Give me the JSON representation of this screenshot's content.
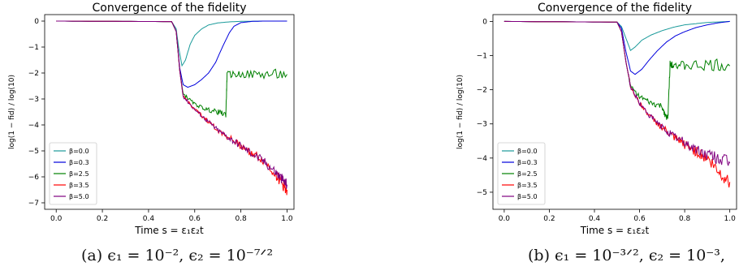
{
  "chart_data": [
    {
      "type": "line",
      "title": "Convergence of the fidelity",
      "xlabel": "Time s = ε₁ε₂t",
      "ylabel": "log(1 − fid) / log(10)",
      "xlim": [
        -0.05,
        1.03
      ],
      "ylim": [
        -7.25,
        0.25
      ],
      "xticks": [
        "0.0",
        "0.2",
        "0.4",
        "0.6",
        "0.8",
        "1.0"
      ],
      "yticks": [
        "0",
        "−1",
        "−2",
        "−3",
        "−4",
        "−5",
        "−6",
        "−7"
      ],
      "yticks_values": [
        0,
        -1,
        -2,
        -3,
        -4,
        -5,
        -6,
        -7
      ],
      "grid": false,
      "legend_position": "lower-left",
      "series": [
        {
          "name": "β=0.0",
          "color": "#1a9a9a",
          "x": [
            0.0,
            0.5,
            0.52,
            0.53,
            0.545,
            0.56,
            0.58,
            0.6,
            0.63,
            0.66,
            0.7,
            0.75,
            0.8,
            0.9,
            1.0
          ],
          "y": [
            0,
            -0.02,
            -0.3,
            -1.0,
            -1.72,
            -1.5,
            -0.9,
            -0.55,
            -0.3,
            -0.15,
            -0.07,
            -0.03,
            -0.01,
            0,
            0
          ]
        },
        {
          "name": "β=0.3",
          "color": "#0000dd",
          "x": [
            0.0,
            0.5,
            0.52,
            0.535,
            0.55,
            0.57,
            0.6,
            0.63,
            0.66,
            0.69,
            0.72,
            0.75,
            0.77,
            0.8,
            0.85,
            0.9,
            1.0
          ],
          "y": [
            0,
            -0.02,
            -0.4,
            -1.8,
            -2.45,
            -2.55,
            -2.45,
            -2.25,
            -2.0,
            -1.6,
            -1.0,
            -0.45,
            -0.2,
            -0.06,
            -0.01,
            0,
            0
          ]
        },
        {
          "name": "β=2.5",
          "color": "#008000",
          "x": [
            0.0,
            0.5,
            0.52,
            0.535,
            0.55,
            0.6,
            0.65,
            0.7,
            0.735,
            0.74,
            0.8,
            0.9,
            1.0
          ],
          "y": [
            0,
            -0.02,
            -0.4,
            -1.9,
            -2.8,
            -3.2,
            -3.4,
            -3.5,
            -3.6,
            -2.05,
            -2.05,
            -2.05,
            -2.05
          ]
        },
        {
          "name": "β=3.5",
          "color": "#ff0000",
          "x": [
            0.0,
            0.5,
            0.52,
            0.535,
            0.55,
            0.6,
            0.65,
            0.7,
            0.75,
            0.8,
            0.85,
            0.9,
            0.95,
            0.98,
            1.0
          ],
          "y": [
            0,
            -0.02,
            -0.4,
            -1.9,
            -2.9,
            -3.4,
            -3.8,
            -4.2,
            -4.5,
            -4.8,
            -5.1,
            -5.4,
            -5.9,
            -6.3,
            -6.5
          ]
        },
        {
          "name": "β=5.0",
          "color": "#800080",
          "x": [
            0.0,
            0.5,
            0.52,
            0.535,
            0.55,
            0.6,
            0.65,
            0.7,
            0.75,
            0.8,
            0.85,
            0.9,
            0.95,
            0.98,
            1.0
          ],
          "y": [
            0,
            -0.02,
            -0.4,
            -1.9,
            -2.9,
            -3.4,
            -3.8,
            -4.2,
            -4.5,
            -4.8,
            -5.1,
            -5.4,
            -5.8,
            -6.1,
            -6.3
          ]
        }
      ]
    },
    {
      "type": "line",
      "title": "Convergence of the fidelity",
      "xlabel": "Time s = ε₁ε₂t",
      "ylabel": "log(1 − fid) / log(10)",
      "xlim": [
        -0.05,
        1.03
      ],
      "ylim": [
        -5.5,
        0.2
      ],
      "xticks": [
        "0.0",
        "0.2",
        "0.4",
        "0.6",
        "0.8",
        "1.0"
      ],
      "yticks": [
        "0",
        "−1",
        "−2",
        "−3",
        "−4",
        "−5"
      ],
      "yticks_values": [
        0,
        -1,
        -2,
        -3,
        -4,
        -5
      ],
      "grid": false,
      "legend_position": "lower-left",
      "series": [
        {
          "name": "β=0.0",
          "color": "#1a9a9a",
          "x": [
            0.0,
            0.5,
            0.52,
            0.54,
            0.56,
            0.58,
            0.61,
            0.65,
            0.7,
            0.75,
            0.8,
            0.9,
            1.0
          ],
          "y": [
            0,
            -0.02,
            -0.15,
            -0.5,
            -0.85,
            -0.75,
            -0.55,
            -0.4,
            -0.27,
            -0.17,
            -0.1,
            -0.03,
            0
          ]
        },
        {
          "name": "β=0.3",
          "color": "#0000dd",
          "x": [
            0.0,
            0.5,
            0.52,
            0.54,
            0.56,
            0.58,
            0.61,
            0.64,
            0.68,
            0.72,
            0.76,
            0.8,
            0.85,
            0.9,
            0.95,
            1.0
          ],
          "y": [
            0,
            -0.02,
            -0.2,
            -0.9,
            -1.45,
            -1.55,
            -1.4,
            -1.15,
            -0.85,
            -0.6,
            -0.42,
            -0.3,
            -0.18,
            -0.1,
            -0.04,
            0
          ]
        },
        {
          "name": "β=2.5",
          "color": "#008000",
          "x": [
            0.0,
            0.5,
            0.52,
            0.54,
            0.56,
            0.6,
            0.65,
            0.7,
            0.725,
            0.735,
            0.75,
            0.8,
            0.9,
            1.0
          ],
          "y": [
            0,
            -0.02,
            -0.3,
            -1.2,
            -1.9,
            -2.2,
            -2.4,
            -2.5,
            -2.9,
            -1.25,
            -1.25,
            -1.3,
            -1.3,
            -1.3
          ]
        },
        {
          "name": "β=3.5",
          "color": "#ff0000",
          "x": [
            0.0,
            0.5,
            0.52,
            0.54,
            0.56,
            0.6,
            0.65,
            0.7,
            0.75,
            0.8,
            0.85,
            0.9,
            0.95,
            1.0
          ],
          "y": [
            0,
            -0.02,
            -0.3,
            -1.2,
            -1.9,
            -2.4,
            -2.8,
            -3.1,
            -3.4,
            -3.6,
            -3.8,
            -4.0,
            -4.4,
            -4.7
          ]
        },
        {
          "name": "β=5.0",
          "color": "#800080",
          "x": [
            0.0,
            0.5,
            0.52,
            0.54,
            0.56,
            0.6,
            0.65,
            0.7,
            0.75,
            0.8,
            0.85,
            0.9,
            0.95,
            1.0
          ],
          "y": [
            0,
            -0.02,
            -0.3,
            -1.2,
            -1.9,
            -2.4,
            -2.8,
            -3.1,
            -3.35,
            -3.55,
            -3.75,
            -3.9,
            -4.0,
            -4.15
          ]
        }
      ]
    }
  ],
  "captions": {
    "a": "(a) ϵ₁ = 10⁻², ϵ₂ = 10⁻⁷ᐟ²",
    "b": "(b) ϵ₁ = 10⁻³ᐟ², ϵ₂ = 10⁻³,"
  }
}
